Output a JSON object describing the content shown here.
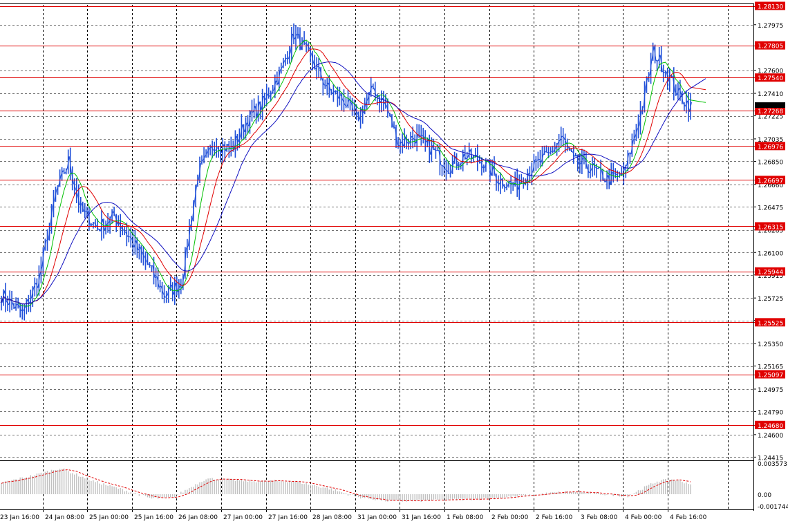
{
  "colors": {
    "background": "#ffffff",
    "grid": "#000000",
    "bar": "#1f4fd8",
    "level_line": "#e00000",
    "level_label_bg": "#e00000",
    "level_label_text": "#ffffff",
    "ma_fast": "#00c000",
    "ma_mid": "#e00000",
    "ma_slow": "#1010c0",
    "histogram": "#c0c0c0",
    "signal": "#e00000",
    "current_price_bg": "#000000"
  },
  "chart_data": [
    {
      "type": "ohlc",
      "title": "",
      "ylim": [
        1.244,
        1.2815
      ],
      "price_ticks": [
        "1.27975",
        "1.27600",
        "1.27410",
        "1.27225",
        "1.27035",
        "1.26850",
        "1.26660",
        "1.26475",
        "1.26285",
        "1.26100",
        "1.25915",
        "1.25725",
        "1.25540",
        "1.25350",
        "1.25165",
        "1.24975",
        "1.24790",
        "1.24600",
        "1.24415"
      ],
      "time_labels": [
        "23 Jan 16:00",
        "24 Jan 08:00",
        "25 Jan 00:00",
        "25 Jan 16:00",
        "26 Jan 08:00",
        "27 Jan 00:00",
        "27 Jan 16:00",
        "28 Jan 08:00",
        "31 Jan 00:00",
        "31 Jan 16:00",
        "1 Feb 08:00",
        "2 Feb 00:00",
        "2 Feb 16:00",
        "3 Feb 08:00",
        "4 Feb 00:00",
        "4 Feb 16:00"
      ],
      "levels": [
        "1.28130",
        "1.27805",
        "1.27540",
        "1.27268",
        "1.26976",
        "1.26697",
        "1.26315",
        "1.25944",
        "1.25525",
        "1.25097",
        "1.24680"
      ],
      "current_price": "1.27268",
      "close_anchors": [
        [
          0,
          1.2575
        ],
        [
          10,
          1.256
        ],
        [
          18,
          1.259
        ],
        [
          26,
          1.266
        ],
        [
          32,
          1.2685
        ],
        [
          38,
          1.2645
        ],
        [
          46,
          1.263
        ],
        [
          54,
          1.264
        ],
        [
          62,
          1.262
        ],
        [
          70,
          1.26
        ],
        [
          78,
          1.2575
        ],
        [
          86,
          1.2585
        ],
        [
          94,
          1.2675
        ],
        [
          102,
          1.27
        ],
        [
          110,
          1.2695
        ],
        [
          118,
          1.272
        ],
        [
          126,
          1.2735
        ],
        [
          134,
          1.276
        ],
        [
          140,
          1.279
        ],
        [
          148,
          1.277
        ],
        [
          156,
          1.2745
        ],
        [
          164,
          1.2735
        ],
        [
          170,
          1.272
        ],
        [
          178,
          1.2745
        ],
        [
          184,
          1.273
        ],
        [
          190,
          1.27
        ],
        [
          198,
          1.2705
        ],
        [
          206,
          1.2695
        ],
        [
          214,
          1.268
        ],
        [
          222,
          1.269
        ],
        [
          230,
          1.2685
        ],
        [
          238,
          1.267
        ],
        [
          246,
          1.2665
        ],
        [
          254,
          1.268
        ],
        [
          262,
          1.269
        ],
        [
          268,
          1.2705
        ],
        [
          274,
          1.2685
        ],
        [
          282,
          1.268
        ],
        [
          290,
          1.267
        ],
        [
          298,
          1.2675
        ],
        [
          306,
          1.2725
        ],
        [
          312,
          1.2775
        ],
        [
          318,
          1.276
        ],
        [
          324,
          1.274
        ],
        [
          330,
          1.273
        ]
      ],
      "osc_ylim": [
        -0.001744,
        0.003573
      ],
      "osc_labels": [
        "0.003573",
        "0.00",
        "-0.001744"
      ],
      "osc_anchors": [
        [
          0,
          0.0013
        ],
        [
          16,
          0.0022
        ],
        [
          28,
          0.003
        ],
        [
          44,
          0.0015
        ],
        [
          60,
          0.0004
        ],
        [
          72,
          -0.0005
        ],
        [
          82,
          -0.0004
        ],
        [
          98,
          0.0018
        ],
        [
          106,
          0.0017
        ],
        [
          120,
          0.0015
        ],
        [
          140,
          0.0015
        ],
        [
          158,
          0.0006
        ],
        [
          170,
          -0.0003
        ],
        [
          186,
          -0.0008
        ],
        [
          210,
          -0.0007
        ],
        [
          240,
          -0.0004
        ],
        [
          262,
          0.0001
        ],
        [
          272,
          0.0003
        ],
        [
          300,
          -0.0002
        ],
        [
          314,
          0.0015
        ],
        [
          322,
          0.0017
        ],
        [
          330,
          0.0012
        ]
      ]
    }
  ]
}
